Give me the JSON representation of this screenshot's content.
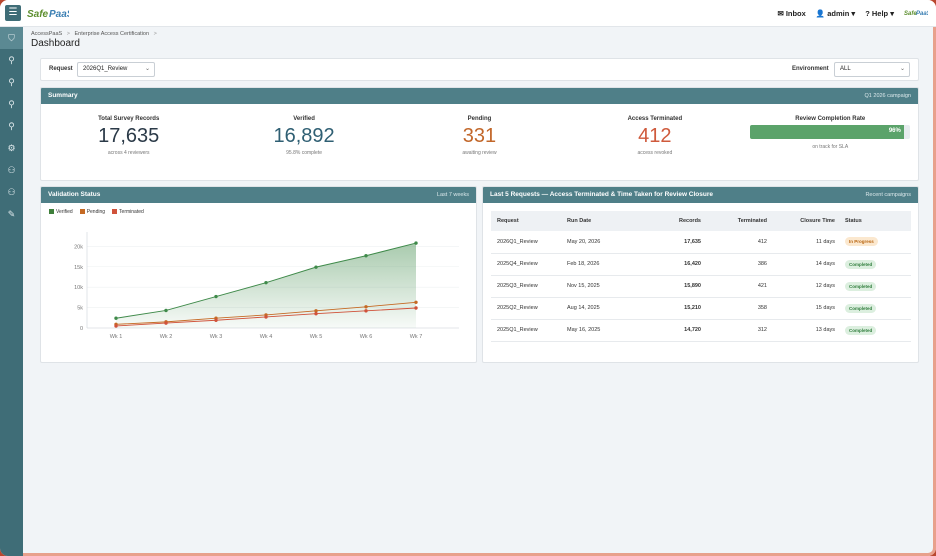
{
  "topbar": {
    "inbox": "Inbox",
    "user": "admin",
    "help": "Help",
    "brand": "SafePaaS"
  },
  "sidebar": {
    "icons": [
      "user-shield-icon",
      "user-search-icon",
      "user-search-icon",
      "user-search-icon",
      "user-search-icon",
      "gear-icon",
      "user-settings-icon",
      "user-settings-icon",
      "wrench-icon"
    ]
  },
  "breadcrumb": {
    "root": "AccessPaaS",
    "child": "Enterprise Access Certification",
    "sep": ">"
  },
  "page_title": "Dashboard",
  "filters": {
    "request_label": "Request",
    "request_value": "2026Q1_Review",
    "environment_label": "Environment",
    "environment_value": "ALL"
  },
  "summary": {
    "title": "Summary",
    "campaign": "Q1 2026 campaign",
    "kpis": [
      {
        "label": "Total Survey Records",
        "value": "17,635",
        "sub": "across 4 reviewers",
        "color": "#2b3a48"
      },
      {
        "label": "Verified",
        "value": "16,892",
        "sub": "95.8% complete",
        "color": "#2f5f73"
      },
      {
        "label": "Pending",
        "value": "331",
        "sub": "awaiting review",
        "color": "#c2672a"
      },
      {
        "label": "Access Terminated",
        "value": "412",
        "sub": "access revoked",
        "color": "#cf5a3c"
      }
    ],
    "rate": {
      "label": "Review Completion Rate",
      "value_text": "96%",
      "value": 0.96,
      "sub": "on track for SLA"
    }
  },
  "validation": {
    "title": "Validation Status",
    "range": "Last 7 weeks",
    "legend": [
      {
        "name": "Verified",
        "color": "#3f7f3b"
      },
      {
        "name": "Pending",
        "color": "#c56a24"
      },
      {
        "name": "Terminated",
        "color": "#d0523a"
      }
    ]
  },
  "chart_data": {
    "type": "area",
    "categories": [
      "Wk 1",
      "Wk 2",
      "Wk 3",
      "Wk 4",
      "Wk 5",
      "Wk 6",
      "Wk 7"
    ],
    "series": [
      {
        "name": "Verified",
        "values": [
          2400,
          4300,
          7700,
          11100,
          14900,
          17700,
          20800
        ]
      },
      {
        "name": "Pending",
        "values": [
          900,
          1500,
          2400,
          3200,
          4200,
          5200,
          6300
        ]
      },
      {
        "name": "Terminated",
        "values": [
          500,
          1200,
          1900,
          2700,
          3500,
          4200,
          4900
        ]
      }
    ],
    "yticks": [
      "0",
      "5k",
      "10k",
      "15k",
      "20k"
    ],
    "ylim": [
      0,
      24000
    ],
    "title": "",
    "xlabel": "",
    "ylabel": "",
    "grid": true,
    "legend": "top-left"
  },
  "requests": {
    "title": "Last 5 Requests — Access Terminated & Time Taken for Review Closure",
    "link": "Recent campaigns",
    "columns": [
      "Request",
      "Run Date",
      "Records",
      "Terminated",
      "Closure Time",
      "Status"
    ],
    "rows": [
      {
        "request": "2026Q1_Review",
        "date": "May 20, 2026",
        "records": "17,635",
        "terminated": "412",
        "closure": "11 days",
        "status": "In Progress",
        "kind": "progress"
      },
      {
        "request": "2025Q4_Review",
        "date": "Feb 18, 2026",
        "records": "16,420",
        "terminated": "386",
        "closure": "14 days",
        "status": "Completed",
        "kind": "done"
      },
      {
        "request": "2025Q3_Review",
        "date": "Nov 15, 2025",
        "records": "15,890",
        "terminated": "421",
        "closure": "12 days",
        "status": "Completed",
        "kind": "done"
      },
      {
        "request": "2025Q2_Review",
        "date": "Aug 14, 2025",
        "records": "15,210",
        "terminated": "358",
        "closure": "15 days",
        "status": "Completed",
        "kind": "done"
      },
      {
        "request": "2025Q1_Review",
        "date": "May 16, 2025",
        "records": "14,720",
        "terminated": "312",
        "closure": "13 days",
        "status": "Completed",
        "kind": "done"
      }
    ]
  }
}
